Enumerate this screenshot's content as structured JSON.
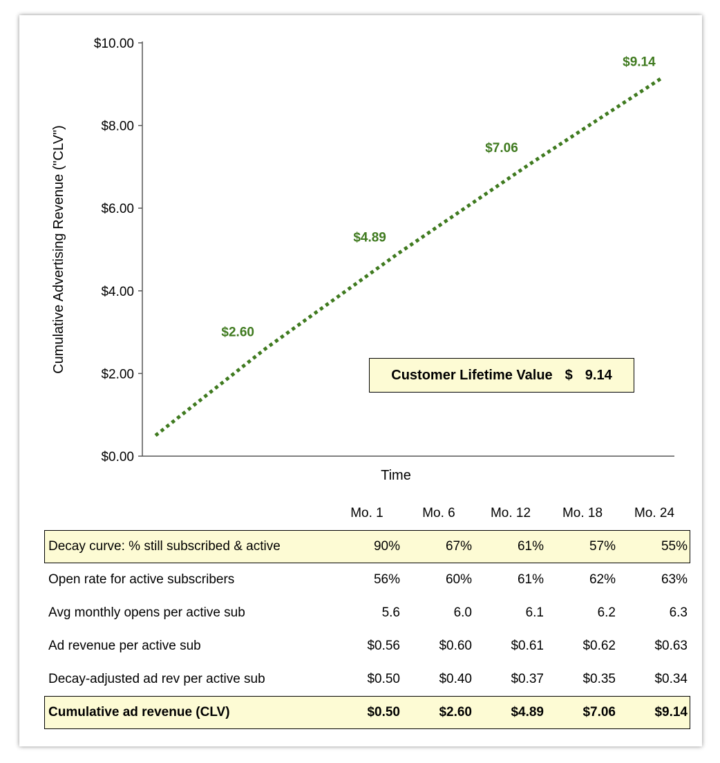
{
  "chart_data": {
    "type": "line",
    "style": "dotted",
    "ylabel": "Cumulative Advertising Revenue (\"CLV\")",
    "xlabel": "Time",
    "ylim": [
      0,
      10
    ],
    "y_ticks": [
      "$0.00",
      "$2.00",
      "$4.00",
      "$6.00",
      "$8.00",
      "$10.00"
    ],
    "x": [
      1,
      6,
      12,
      18,
      24
    ],
    "series": [
      {
        "values": [
          0.5,
          2.6,
          4.89,
          7.06,
          9.14
        ]
      }
    ],
    "data_labels": [
      "",
      "$2.60",
      "$4.89",
      "$7.06",
      "$9.14"
    ],
    "grid": false,
    "line_color": "#3f7a1f",
    "label_color": "#3f7a1f"
  },
  "callout": {
    "label": "Customer Lifetime Value",
    "currency": "$",
    "value": "9.14"
  },
  "table": {
    "columns": [
      "",
      "Mo. 1",
      "Mo. 6",
      "Mo. 12",
      "Mo. 18",
      "Mo. 24"
    ],
    "rows": [
      {
        "label": "Decay curve: % still subscribed & active",
        "values": [
          "90%",
          "67%",
          "61%",
          "57%",
          "55%"
        ],
        "highlight": true,
        "bold": false
      },
      {
        "label": "Open rate for active subscribers",
        "values": [
          "56%",
          "60%",
          "61%",
          "62%",
          "63%"
        ],
        "highlight": false,
        "bold": false
      },
      {
        "label": "Avg monthly opens per active sub",
        "values": [
          "5.6",
          "6.0",
          "6.1",
          "6.2",
          "6.3"
        ],
        "highlight": false,
        "bold": false
      },
      {
        "label": "Ad revenue per active sub",
        "values": [
          "$0.56",
          "$0.60",
          "$0.61",
          "$0.62",
          "$0.63"
        ],
        "highlight": false,
        "bold": false
      },
      {
        "label": "Decay-adjusted ad rev per active sub",
        "values": [
          "$0.50",
          "$0.40",
          "$0.37",
          "$0.35",
          "$0.34"
        ],
        "highlight": false,
        "bold": false
      },
      {
        "label": "Cumulative ad revenue (CLV)",
        "values": [
          "$0.50",
          "$2.60",
          "$4.89",
          "$7.06",
          "$9.14"
        ],
        "highlight": true,
        "bold": true
      }
    ]
  },
  "colors": {
    "highlight_fill": "#fdfbd4",
    "line_green": "#3f7a1f"
  }
}
